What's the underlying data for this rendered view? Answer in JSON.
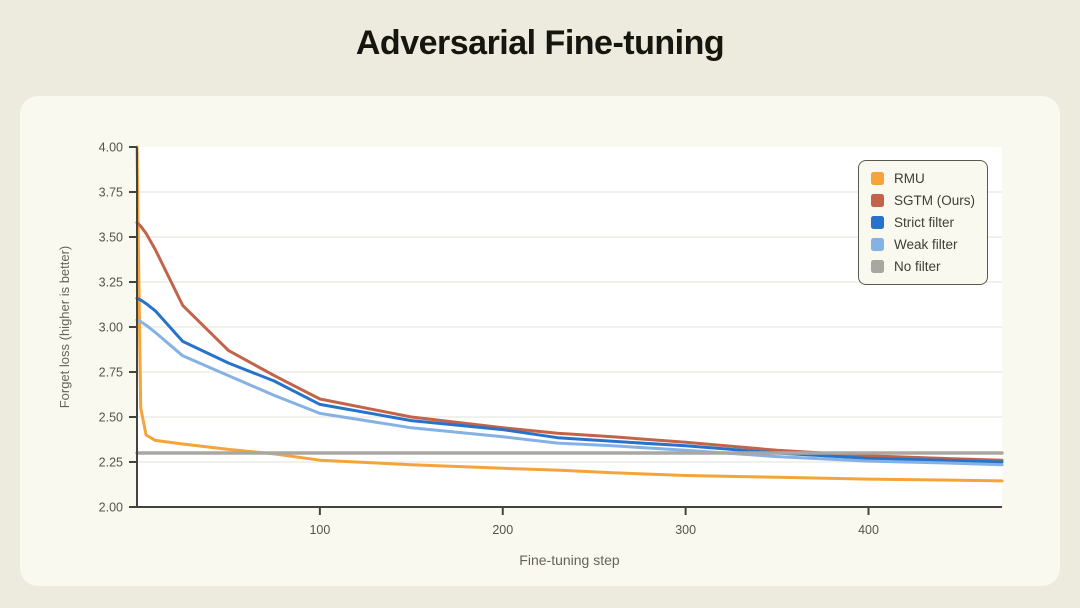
{
  "page": {
    "title": "Adversarial Fine-tuning"
  },
  "theme": {
    "page-bg": "#ECEBDE",
    "card-bg": "#FAF9F0",
    "plot-bg": "#FFFFFF",
    "axis-color": "#44443E",
    "grid-color": "#ECECE6",
    "tick-label-color": "#55544C"
  },
  "chart_data": {
    "type": "line",
    "title": "Adversarial Fine-tuning",
    "xlabel": "Fine-tuning step",
    "ylabel": "Forget loss (higher is better)",
    "xlim": [
      0,
      473
    ],
    "ylim": [
      2.0,
      4.0
    ],
    "xticks": [
      100,
      200,
      300,
      400
    ],
    "yticks": [
      2.0,
      2.25,
      2.5,
      2.75,
      3.0,
      3.25,
      3.5,
      3.75,
      4.0
    ],
    "grid": "horizontal",
    "legend_position": "top-right",
    "x": [
      0,
      2,
      5,
      10,
      25,
      50,
      75,
      100,
      150,
      200,
      230,
      260,
      300,
      350,
      400,
      440,
      473
    ],
    "series": [
      {
        "name": "RMU",
        "color": "#F5A33B",
        "values": [
          4.0,
          2.55,
          2.4,
          2.37,
          2.35,
          2.32,
          2.295,
          2.26,
          2.235,
          2.215,
          2.205,
          2.19,
          2.175,
          2.165,
          2.155,
          2.15,
          2.145
        ]
      },
      {
        "name": "SGTM (Ours)",
        "color": "#C3644A",
        "values": [
          3.58,
          3.56,
          3.52,
          3.43,
          3.12,
          2.87,
          2.73,
          2.6,
          2.5,
          2.44,
          2.41,
          2.39,
          2.36,
          2.315,
          2.285,
          2.27,
          2.26
        ]
      },
      {
        "name": "Strict filter",
        "color": "#2673CC",
        "values": [
          3.16,
          3.15,
          3.13,
          3.09,
          2.92,
          2.8,
          2.7,
          2.57,
          2.48,
          2.43,
          2.385,
          2.365,
          2.34,
          2.3,
          2.27,
          2.26,
          2.25
        ]
      },
      {
        "name": "Weak filter",
        "color": "#85B2E5",
        "values": [
          3.04,
          3.03,
          3.01,
          2.97,
          2.84,
          2.73,
          2.62,
          2.52,
          2.44,
          2.39,
          2.355,
          2.34,
          2.315,
          2.28,
          2.255,
          2.245,
          2.235
        ]
      },
      {
        "name": "No filter",
        "color": "#A8A7A2",
        "values": [
          2.3,
          2.3,
          2.3,
          2.3,
          2.3,
          2.3,
          2.3,
          2.3,
          2.3,
          2.3,
          2.3,
          2.3,
          2.3,
          2.3,
          2.3,
          2.3,
          2.3
        ]
      }
    ]
  }
}
